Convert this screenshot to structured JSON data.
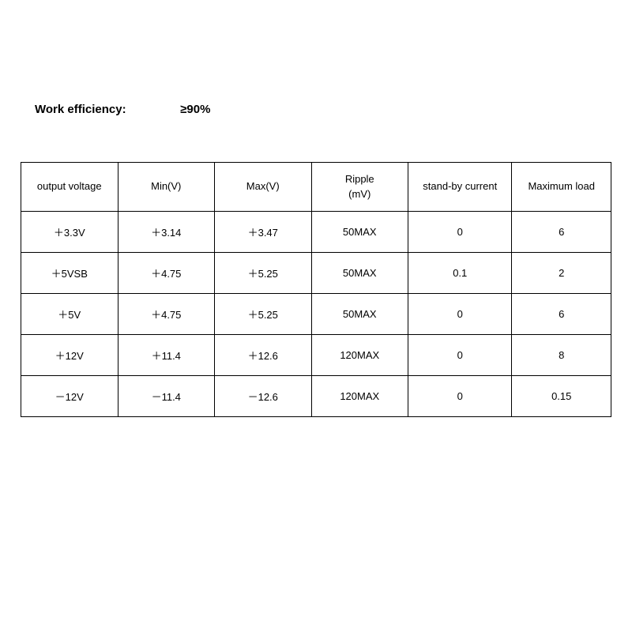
{
  "efficiency": {
    "label": "Work efficiency:",
    "value": "≥90%"
  },
  "spec_table": {
    "type": "table",
    "border_color": "#000000",
    "background_color": "#ffffff",
    "text_color": "#000000",
    "header_fontsize": 13,
    "cell_fontsize": 13,
    "columns": [
      {
        "label": "output voltage",
        "width_pct": 16.4,
        "align": "center"
      },
      {
        "label": "Min(V)",
        "width_pct": 16.4,
        "align": "center"
      },
      {
        "label": "Max(V)",
        "width_pct": 16.4,
        "align": "center"
      },
      {
        "label": "Ripple\n(mV)",
        "width_pct": 16.4,
        "align": "center"
      },
      {
        "label": "stand-by current",
        "width_pct": 17.6,
        "align": "center"
      },
      {
        "label": "Maximum load",
        "width_pct": 16.8,
        "align": "center"
      }
    ],
    "rows": [
      [
        "＋3.3V",
        "＋3.14",
        "＋3.47",
        "50MAX",
        "0",
        "6"
      ],
      [
        "＋5VSB",
        "＋4.75",
        "＋5.25",
        "50MAX",
        "0.1",
        "2"
      ],
      [
        "＋5V",
        "＋4.75",
        "＋5.25",
        "50MAX",
        "0",
        "6"
      ],
      [
        "＋12V",
        "＋11.4",
        "＋12.6",
        "120MAX",
        "0",
        "8"
      ],
      [
        "－12V",
        "－11.4",
        "－12.6",
        "120MAX",
        "0",
        "0.15"
      ]
    ]
  }
}
